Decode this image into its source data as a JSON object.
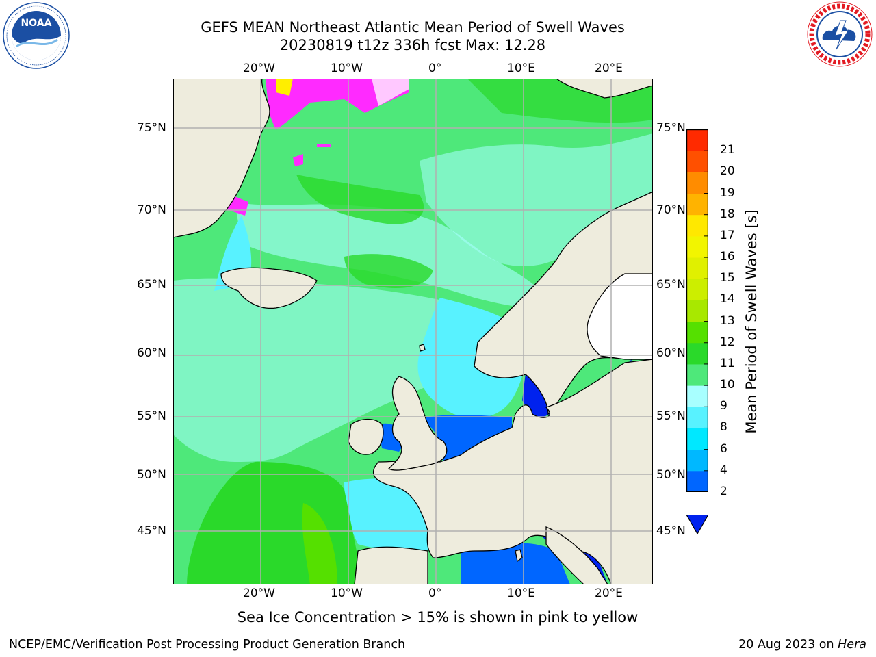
{
  "header": {
    "title_line1": "GEFS MEAN Northeast Atlantic Mean Period of Swell Waves",
    "title_line2": "20230819 t12z 336h fcst   Max: 12.28"
  },
  "logos": {
    "left": {
      "icon": "noaa-logo-icon",
      "text": "NOAA",
      "ring_text": "NATIONAL OCEANIC AND ATMOSPHERIC ADMINISTRATION • U.S. DEPARTMENT OF COMMERCE",
      "color": "#1b4fa3"
    },
    "right": {
      "icon": "nws-logo-icon",
      "ring_text": "NATIONAL WEATHER SERVICE",
      "color": "#e31b23"
    }
  },
  "map": {
    "lon_labels": [
      "20°W",
      "10°W",
      "0°",
      "10°E",
      "20°E"
    ],
    "lat_labels": [
      "75°N",
      "70°N",
      "65°N",
      "60°N",
      "55°N",
      "50°N",
      "45°N"
    ],
    "land_color": "#eeecdd",
    "grid_color": "#b0b0b0"
  },
  "colorbar": {
    "title": "Mean Period of Swell Waves [s]",
    "ticks": [
      "2",
      "4",
      "6",
      "8",
      "9",
      "10",
      "11",
      "12",
      "13",
      "14",
      "15",
      "16",
      "17",
      "18",
      "19",
      "20",
      "21"
    ],
    "colors": [
      "#0066ff",
      "#00b8ff",
      "#00e8ff",
      "#58f2ff",
      "#a8ffff",
      "#4ee87a",
      "#2ad92a",
      "#55e000",
      "#a8e800",
      "#ccee00",
      "#e0f000",
      "#f2f500",
      "#ffe800",
      "#ffb300",
      "#ff8c00",
      "#ff5000",
      "#ff2a00",
      "#ff0000"
    ],
    "under_color": "#0022ee"
  },
  "footnote": "Sea Ice Concentration > 15% is shown in pink to yellow",
  "footer": {
    "credit": "NCEP/EMC/Verification Post Processing Product Generation Branch",
    "date": "20 Aug 2023 on ",
    "host": "Hera"
  }
}
